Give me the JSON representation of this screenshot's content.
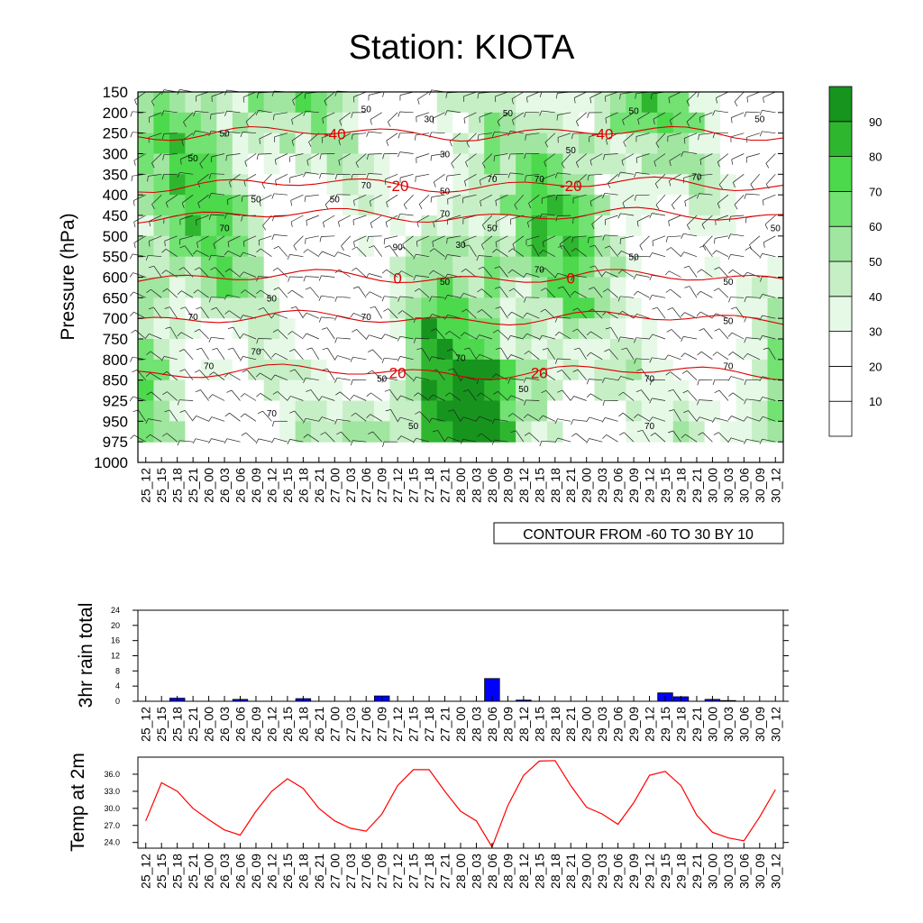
{
  "title": "Station: KIOTA",
  "time_labels": [
    "25_12",
    "25_15",
    "25_18",
    "25_21",
    "26_00",
    "26_03",
    "26_06",
    "26_09",
    "26_12",
    "26_15",
    "26_18",
    "26_21",
    "27_00",
    "27_03",
    "27_06",
    "27_09",
    "27_12",
    "27_15",
    "27_18",
    "27_21",
    "28_00",
    "28_03",
    "28_06",
    "28_09",
    "28_12",
    "28_15",
    "28_18",
    "28_21",
    "29_00",
    "29_03",
    "29_06",
    "29_09",
    "29_12",
    "29_15",
    "29_18",
    "29_21",
    "30_00",
    "30_03",
    "30_06",
    "30_09",
    "30_12"
  ],
  "chart_data": [
    {
      "type": "heatmap",
      "ylabel": "Pressure (hPa)",
      "pressure_levels": [
        "150",
        "200",
        "250",
        "300",
        "350",
        "400",
        "450",
        "500",
        "550",
        "600",
        "650",
        "700",
        "750",
        "800",
        "850",
        "925",
        "950",
        "975",
        "1000"
      ],
      "colorbar_labels": [
        "10",
        "20",
        "30",
        "40",
        "50",
        "60",
        "70",
        "80",
        "90"
      ],
      "colorbar_colors": [
        "#ffffff",
        "#ffffff",
        "#ffffff",
        "#e6f9e6",
        "#c6efc6",
        "#a0e6a0",
        "#72e272",
        "#4cd94c",
        "#2fb62f",
        "#17941d"
      ],
      "contour_note": "CONTOUR FROM -60 TO 30 BY 10",
      "temperature_contour_labels": [
        {
          "text": "-40",
          "time_index": 12,
          "pressure": 250
        },
        {
          "text": "-40",
          "time_index": 29,
          "pressure": 250
        },
        {
          "text": "-20",
          "time_index": 16,
          "pressure": 375
        },
        {
          "text": "-20",
          "time_index": 27,
          "pressure": 375
        },
        {
          "text": "0",
          "time_index": 16,
          "pressure": 600
        },
        {
          "text": "0",
          "time_index": 27,
          "pressure": 600
        },
        {
          "text": "20",
          "time_index": 16,
          "pressure": 830
        },
        {
          "text": "20",
          "time_index": 25,
          "pressure": 830
        }
      ],
      "rh_contour_labels": [
        {
          "text": "50",
          "time_index": 14,
          "pressure": 190
        },
        {
          "text": "30",
          "time_index": 18,
          "pressure": 215
        },
        {
          "text": "50",
          "time_index": 23,
          "pressure": 200
        },
        {
          "text": "50",
          "time_index": 31,
          "pressure": 195
        },
        {
          "text": "50",
          "time_index": 39,
          "pressure": 215
        },
        {
          "text": "50",
          "time_index": 5,
          "pressure": 250
        },
        {
          "text": "50",
          "time_index": 3,
          "pressure": 310
        },
        {
          "text": "30",
          "time_index": 19,
          "pressure": 300
        },
        {
          "text": "50",
          "time_index": 27,
          "pressure": 290
        },
        {
          "text": "70",
          "time_index": 14,
          "pressure": 375
        },
        {
          "text": "70",
          "time_index": 22,
          "pressure": 360
        },
        {
          "text": "70",
          "time_index": 25,
          "pressure": 360
        },
        {
          "text": "70",
          "time_index": 35,
          "pressure": 355
        },
        {
          "text": "50",
          "time_index": 7,
          "pressure": 410
        },
        {
          "text": "50",
          "time_index": 12,
          "pressure": 410
        },
        {
          "text": "50",
          "time_index": 19,
          "pressure": 390
        },
        {
          "text": "70",
          "time_index": 19,
          "pressure": 445
        },
        {
          "text": "70",
          "time_index": 5,
          "pressure": 480
        },
        {
          "text": "50",
          "time_index": 22,
          "pressure": 480
        },
        {
          "text": "50",
          "time_index": 40,
          "pressure": 480
        },
        {
          "text": "90",
          "time_index": 16,
          "pressure": 525
        },
        {
          "text": "30",
          "time_index": 20,
          "pressure": 520
        },
        {
          "text": "50",
          "time_index": 31,
          "pressure": 550
        },
        {
          "text": "70",
          "time_index": 25,
          "pressure": 580
        },
        {
          "text": "50",
          "time_index": 19,
          "pressure": 610
        },
        {
          "text": "50",
          "time_index": 37,
          "pressure": 610
        },
        {
          "text": "50",
          "time_index": 8,
          "pressure": 650
        },
        {
          "text": "70",
          "time_index": 3,
          "pressure": 695
        },
        {
          "text": "70",
          "time_index": 14,
          "pressure": 695
        },
        {
          "text": "50",
          "time_index": 37,
          "pressure": 705
        },
        {
          "text": "70",
          "time_index": 7,
          "pressure": 780
        },
        {
          "text": "70",
          "time_index": 4,
          "pressure": 815
        },
        {
          "text": "70",
          "time_index": 20,
          "pressure": 795
        },
        {
          "text": "70",
          "time_index": 37,
          "pressure": 815
        },
        {
          "text": "50",
          "time_index": 15,
          "pressure": 845
        },
        {
          "text": "70",
          "time_index": 32,
          "pressure": 845
        },
        {
          "text": "50",
          "time_index": 24,
          "pressure": 880
        },
        {
          "text": "70",
          "time_index": 8,
          "pressure": 940
        },
        {
          "text": "50",
          "time_index": 17,
          "pressure": 955
        },
        {
          "text": "70",
          "time_index": 32,
          "pressure": 955
        }
      ]
    },
    {
      "type": "bar",
      "ylabel": "3hr rain total",
      "ylim": [
        0,
        24
      ],
      "yticks": [
        "0",
        "4",
        "8",
        "12",
        "16",
        "20",
        "24"
      ],
      "values": [
        0,
        0,
        0.8,
        0,
        0,
        0,
        0.5,
        0,
        0,
        0,
        0.7,
        0,
        0,
        0,
        0,
        1.4,
        0,
        0,
        0,
        0,
        0,
        0,
        6.0,
        0,
        0.3,
        0,
        0,
        0,
        0,
        0,
        0,
        0,
        0,
        2.2,
        1.2,
        0,
        0.5,
        0.2,
        0,
        0,
        0
      ],
      "bar_color": "#0000ff"
    },
    {
      "type": "line",
      "ylabel": "Temp at 2m",
      "ylim": [
        23,
        39
      ],
      "yticks": [
        "24.0",
        "27.0",
        "30.0",
        "33.0",
        "36.0"
      ],
      "values": [
        27.8,
        34.5,
        33.0,
        30.0,
        28.0,
        26.2,
        25.3,
        29.5,
        33.0,
        35.2,
        33.5,
        30.0,
        27.8,
        26.5,
        26.0,
        29.0,
        34.0,
        36.8,
        36.8,
        33.0,
        29.5,
        27.8,
        23.2,
        30.5,
        35.8,
        38.3,
        38.4,
        34.0,
        30.2,
        29.0,
        27.2,
        31.0,
        35.8,
        36.5,
        34.0,
        28.8,
        25.8,
        24.8,
        24.3,
        28.5,
        33.3
      ],
      "line_color": "#ff0000"
    }
  ]
}
